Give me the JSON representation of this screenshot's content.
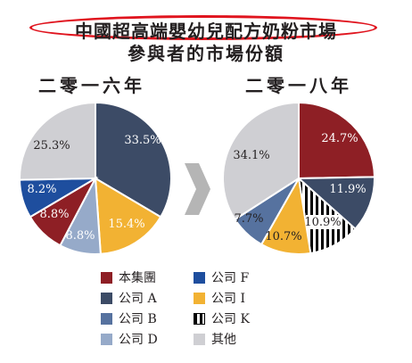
{
  "title_line_1": "中國超高端嬰幼兒配方奶粉市場",
  "title_line_2": "參與者的市場份額",
  "colors": {
    "title_highlight": "#e0141e",
    "arrow": "#b5b5b5"
  },
  "chart_data": [
    {
      "type": "pie",
      "title": "二零一六年",
      "slices": [
        {
          "name": "公司A",
          "value": 33.5,
          "label": "33.5%",
          "color": "#3c4b66"
        },
        {
          "name": "公司I",
          "value": 15.4,
          "label": "15.4%",
          "color": "#f2b233"
        },
        {
          "name": "公司D",
          "value": 8.8,
          "label": "8.8%",
          "color": "#96aac9"
        },
        {
          "name": "本集團",
          "value": 8.8,
          "label": "8.8%",
          "color": "#8e1f25"
        },
        {
          "name": "公司F",
          "value": 8.2,
          "label": "8.2%",
          "color": "#1e4e9e"
        },
        {
          "name": "其他",
          "value": 25.3,
          "label": "25.3%",
          "color": "#cfcfd3"
        }
      ]
    },
    {
      "type": "pie",
      "title": "二零一八年",
      "slices": [
        {
          "name": "本集團",
          "value": 24.7,
          "label": "24.7%",
          "color": "#8e1f25"
        },
        {
          "name": "公司A",
          "value": 11.9,
          "label": "11.9%",
          "color": "#3c4b66"
        },
        {
          "name": "公司K",
          "value": 10.9,
          "label": "10.9%",
          "color": "pattern-black-white-stripes"
        },
        {
          "name": "公司I",
          "value": 10.7,
          "label": "10.7%",
          "color": "#f2b233"
        },
        {
          "name": "公司B",
          "value": 7.7,
          "label": "7.7%",
          "color": "#56729f"
        },
        {
          "name": "其他",
          "value": 34.1,
          "label": "34.1%",
          "color": "#cfcfd3"
        }
      ]
    }
  ],
  "legend": [
    {
      "label": "本集團",
      "color": "#8e1f25"
    },
    {
      "label": "公司 A",
      "color": "#3c4b66"
    },
    {
      "label": "公司 B",
      "color": "#56729f"
    },
    {
      "label": "公司 D",
      "color": "#96aac9"
    },
    {
      "label": "公司 F",
      "color": "#1e4e9e"
    },
    {
      "label": "公司 I",
      "color": "#f2b233"
    },
    {
      "label": "公司 K",
      "color": "pattern-black-white-stripes"
    },
    {
      "label": "其他",
      "color": "#cfcfd3"
    }
  ]
}
